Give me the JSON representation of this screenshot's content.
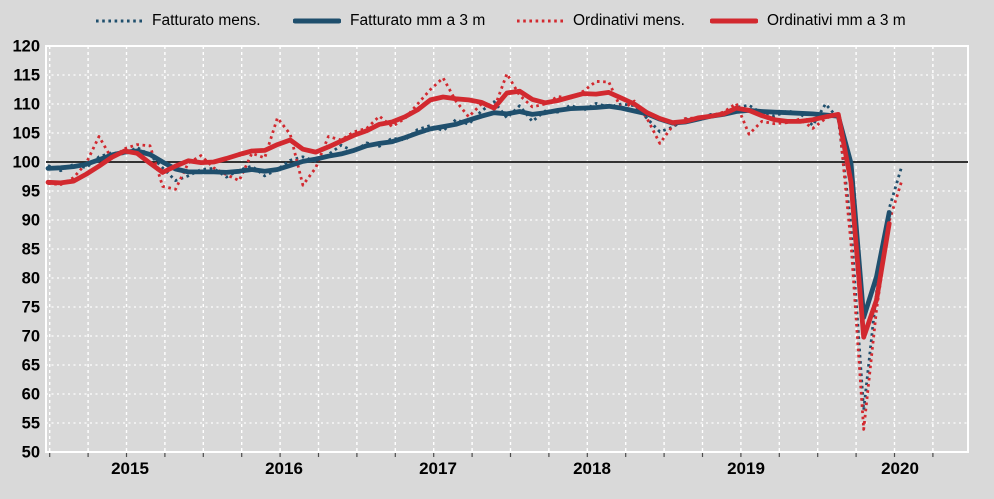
{
  "colors": {
    "background": "#d9d9d9",
    "blue": "#1f4f6d",
    "red": "#d2292f",
    "grid": "#ffffff",
    "baseline": "#1a1a1a",
    "text": "#000000",
    "tickmark": "#4d4d4d"
  },
  "legend": {
    "items": [
      {
        "label": "Fatturato mens.",
        "color": "blue",
        "style": "dotted"
      },
      {
        "label": "Fatturato mm a 3 m",
        "color": "blue",
        "style": "solid"
      },
      {
        "label": "Ordinativi mens.",
        "color": "red",
        "style": "dotted"
      },
      {
        "label": "Ordinativi mm a 3 m",
        "color": "red",
        "style": "solid"
      }
    ]
  },
  "axes": {
    "y_ticks": [
      120,
      115,
      110,
      105,
      100,
      95,
      90,
      85,
      80,
      75,
      70,
      65,
      60,
      55,
      50
    ],
    "x_year_labels": [
      "2015",
      "2016",
      "2017",
      "2018",
      "2019",
      "2020"
    ],
    "baseline_value": 100
  },
  "chart_data": {
    "type": "line",
    "title": "",
    "ylim": [
      50,
      120
    ],
    "baseline": 100,
    "grid": true,
    "legend_position": "top",
    "x_months": [
      "2014-12",
      "2015-01",
      "2015-02",
      "2015-03",
      "2015-04",
      "2015-05",
      "2015-06",
      "2015-07",
      "2015-08",
      "2015-09",
      "2015-10",
      "2015-11",
      "2015-12",
      "2016-01",
      "2016-02",
      "2016-03",
      "2016-04",
      "2016-05",
      "2016-06",
      "2016-07",
      "2016-08",
      "2016-09",
      "2016-10",
      "2016-11",
      "2016-12",
      "2017-01",
      "2017-02",
      "2017-03",
      "2017-04",
      "2017-05",
      "2017-06",
      "2017-07",
      "2017-08",
      "2017-09",
      "2017-10",
      "2017-11",
      "2017-12",
      "2018-01",
      "2018-02",
      "2018-03",
      "2018-04",
      "2018-05",
      "2018-06",
      "2018-07",
      "2018-08",
      "2018-09",
      "2018-10",
      "2018-11",
      "2018-12",
      "2019-01",
      "2019-02",
      "2019-03",
      "2019-04",
      "2019-05",
      "2019-06",
      "2019-07",
      "2019-08",
      "2019-09",
      "2019-10",
      "2019-11",
      "2019-12",
      "2020-01",
      "2020-02",
      "2020-03",
      "2020-04",
      "2020-05",
      "2020-06",
      "2020-07"
    ],
    "series": [
      {
        "id": "fatturato_mens",
        "label": "Fatturato mens.",
        "color": "blue",
        "style": "dotted",
        "values": [
          99.4,
          98.5,
          99.6,
          99.0,
          100.9,
          101.6,
          101.4,
          102.5,
          101.2,
          99.0,
          96.8,
          97.6,
          98.7,
          98.9,
          97.4,
          98.6,
          99.3,
          97.6,
          98.7,
          100.3,
          100.9,
          100.1,
          101.3,
          102.9,
          101.8,
          103.3,
          102.7,
          104.1,
          103.8,
          105.6,
          106.3,
          105.4,
          107.3,
          106.5,
          108.8,
          110.4,
          107.6,
          109.7,
          107.0,
          108.8,
          108.6,
          109.8,
          108.9,
          110.1,
          109.5,
          110.0,
          109.7,
          107.5,
          105.2,
          106.0,
          107.4,
          107.3,
          108.2,
          108.1,
          109.4,
          109.8,
          108.4,
          107.9,
          108.8,
          108.4,
          106.3,
          110.0,
          107.5,
          89.0,
          57.2,
          77.5,
          92.0,
          99.4
        ]
      },
      {
        "id": "fatturato_mm3",
        "label": "Fatturato mm a 3 m",
        "color": "blue",
        "style": "solid",
        "values": [
          98.9,
          99.0,
          99.2,
          99.6,
          100.4,
          101.2,
          101.7,
          101.9,
          101.3,
          100.0,
          98.8,
          98.3,
          98.3,
          98.3,
          98.2,
          98.4,
          98.7,
          98.4,
          98.7,
          99.4,
          100.1,
          100.5,
          101.0,
          101.4,
          102.0,
          102.8,
          103.2,
          103.5,
          104.2,
          105.0,
          105.7,
          106.1,
          106.5,
          107.2,
          107.9,
          108.5,
          108.3,
          108.7,
          108.2,
          108.5,
          108.9,
          109.2,
          109.3,
          109.4,
          109.6,
          109.3,
          108.8,
          108.3,
          107.4,
          106.7,
          106.9,
          107.4,
          107.9,
          108.2,
          108.7,
          108.9,
          108.7,
          108.6,
          108.5,
          108.4,
          108.3,
          108.1,
          107.9,
          99.8,
          73.2,
          80.2,
          91.3,
          null
        ]
      },
      {
        "id": "ordinativi_mens",
        "label": "Ordinativi mens.",
        "color": "red",
        "style": "dotted",
        "values": [
          96.3,
          96.1,
          97.3,
          99.8,
          104.4,
          100.6,
          102.3,
          103.0,
          102.8,
          95.8,
          95.3,
          99.8,
          101.1,
          99.0,
          97.8,
          96.8,
          101.5,
          100.7,
          107.6,
          104.8,
          96.0,
          99.0,
          104.4,
          103.8,
          105.2,
          105.8,
          107.9,
          106.1,
          107.5,
          110.0,
          112.5,
          114.5,
          110.5,
          107.8,
          110.0,
          109.2,
          115.2,
          111.5,
          109.5,
          110.0,
          111.3,
          111.0,
          112.2,
          113.9,
          113.8,
          109.0,
          110.5,
          107.5,
          103.2,
          106.2,
          107.5,
          107.6,
          108.0,
          108.6,
          110.1,
          104.8,
          107.0,
          106.6,
          106.8,
          107.4,
          105.8,
          107.5,
          108.4,
          86.0,
          53.9,
          74.5,
          89.8,
          96.9
        ]
      },
      {
        "id": "ordinativi_mm3",
        "label": "Ordinativi mm a 3 m",
        "color": "red",
        "style": "solid",
        "values": [
          96.5,
          96.4,
          96.7,
          97.9,
          99.3,
          100.8,
          101.9,
          101.5,
          99.8,
          98.2,
          99.3,
          100.2,
          99.9,
          100.0,
          100.6,
          101.3,
          101.9,
          102.0,
          103.0,
          103.8,
          102.2,
          101.7,
          102.6,
          103.6,
          104.6,
          105.4,
          106.5,
          106.9,
          107.8,
          109.0,
          110.7,
          111.2,
          110.9,
          110.7,
          110.3,
          109.3,
          111.9,
          112.2,
          110.8,
          110.2,
          110.6,
          111.2,
          111.8,
          111.7,
          112.0,
          111.0,
          110.0,
          108.5,
          107.5,
          106.8,
          107.0,
          107.6,
          107.9,
          108.3,
          109.3,
          108.9,
          108.0,
          107.3,
          107.0,
          107.0,
          107.3,
          107.8,
          108.2,
          96.5,
          69.8,
          76.2,
          89.4,
          null
        ]
      }
    ]
  }
}
